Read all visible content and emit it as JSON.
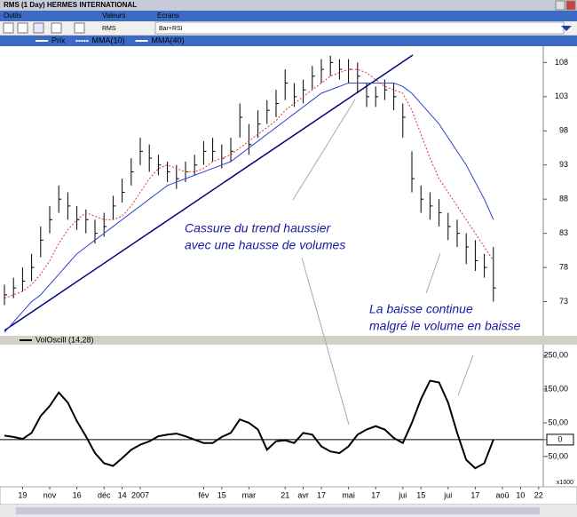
{
  "window": {
    "title": "RMS (1 Day) HERMES INTERNATIONAL"
  },
  "toolbar": {
    "sections": [
      "Outils",
      "Valeurs",
      "Ecrans"
    ],
    "symbol": "RMS",
    "screen": "Bar+RSI"
  },
  "categories": [
    null,
    null,
    "19",
    null,
    null,
    "nov",
    null,
    null,
    "16",
    null,
    null,
    "déc",
    null,
    "14",
    null,
    "2007",
    null,
    null,
    null,
    null,
    null,
    null,
    "fév",
    null,
    "15",
    null,
    null,
    "mar",
    null,
    null,
    null,
    "21",
    null,
    "avr",
    null,
    "17",
    null,
    null,
    "mai",
    null,
    null,
    "17",
    null,
    null,
    "jui",
    null,
    "15",
    null,
    null,
    "jui",
    null,
    null,
    "17",
    null,
    null,
    "aoû",
    null,
    "10",
    null,
    "22"
  ],
  "chart_data": [
    {
      "type": "ohlc",
      "ylim": [
        68,
        110
      ],
      "yticks": [
        73,
        78,
        83,
        88,
        93,
        98,
        103,
        108
      ],
      "annotations": [
        {
          "lines": [
            "Cassure du trend haussier",
            "avec une hausse de volumes"
          ]
        },
        {
          "lines": [
            "La baisse continue",
            "malgré le volume en baisse"
          ]
        }
      ],
      "series": [
        {
          "name": "Prix",
          "color": "#000000",
          "values": [
            74,
            75,
            76,
            78,
            82,
            85,
            88,
            87,
            85,
            85,
            83,
            84,
            87,
            89,
            92,
            95,
            94,
            93,
            92,
            91,
            92,
            93,
            95,
            95,
            94,
            95,
            100,
            96,
            99,
            101,
            102,
            105,
            103,
            104,
            106,
            107,
            108,
            107,
            107,
            106,
            103,
            103,
            104,
            103,
            100,
            91,
            88,
            87,
            86,
            84,
            83,
            81,
            79,
            78,
            75
          ],
          "high": [
            75.5,
            76.5,
            78,
            80,
            84,
            87,
            90,
            89,
            87,
            86.5,
            85,
            86,
            88.5,
            91,
            94,
            97,
            96,
            94.5,
            93.5,
            93,
            93.5,
            94.5,
            96.5,
            97,
            96,
            97,
            102,
            99,
            101,
            102.5,
            104,
            107,
            105,
            105.5,
            107.5,
            108.5,
            109,
            108.5,
            108.5,
            108,
            105,
            104.5,
            105.5,
            105,
            102,
            95,
            90,
            89,
            88,
            86,
            85,
            83,
            82,
            80,
            81
          ],
          "low": [
            72.5,
            73.5,
            74.5,
            76,
            79.5,
            83,
            86,
            85,
            83.5,
            83,
            81.5,
            82.5,
            85,
            87.5,
            90,
            93,
            92,
            91.5,
            90.5,
            89.5,
            90.5,
            91.5,
            93,
            93.5,
            92.5,
            93.5,
            97,
            94.5,
            97,
            99,
            100,
            102.5,
            101.5,
            102,
            104,
            105,
            106,
            105.5,
            105,
            103.5,
            101.5,
            101.5,
            102.5,
            101,
            97,
            89,
            86,
            85,
            84,
            82,
            81,
            78.5,
            77.5,
            76.5,
            73
          ]
        },
        {
          "name": "MMA(10)",
          "color": "#e03030",
          "values": [
            73.5,
            74,
            74.5,
            75.5,
            77,
            79,
            81.5,
            83.5,
            85,
            86,
            85.5,
            85,
            85,
            85.5,
            87,
            89,
            91,
            92.5,
            93,
            92.5,
            92,
            92,
            92.5,
            93.5,
            94,
            94.5,
            95.5,
            96.5,
            97.5,
            98.5,
            99.5,
            101,
            102,
            103,
            104,
            105,
            106,
            106.5,
            107,
            107,
            106.5,
            105.5,
            104.5,
            104,
            103.5,
            101,
            97.5,
            94,
            91,
            89,
            87,
            85,
            83,
            81,
            79
          ]
        },
        {
          "name": "MMA(40)",
          "color": "#3040d0",
          "values": [
            68.5,
            70,
            71.5,
            73,
            74,
            75.5,
            77,
            78.5,
            80,
            81,
            82,
            83,
            84,
            85,
            86,
            87,
            88,
            89,
            90,
            90.5,
            91,
            91.5,
            92,
            92.5,
            93,
            93.5,
            94.5,
            95.5,
            96.5,
            97.5,
            98.5,
            99.5,
            100.5,
            101.5,
            102.5,
            103.5,
            104,
            104.5,
            105,
            105,
            105,
            105,
            105,
            105,
            104.5,
            103.5,
            102,
            100.5,
            99,
            97,
            95,
            93,
            90.5,
            88,
            85
          ]
        }
      ]
    },
    {
      "type": "line",
      "ylim": [
        -140,
        282
      ],
      "yticks": [
        {
          "value": 250,
          "label": "250,00"
        },
        {
          "value": 150,
          "label": "150,00"
        },
        {
          "value": 50,
          "label": "50,00"
        },
        0,
        {
          "value": -50,
          "label": "-50,00"
        }
      ],
      "unit_label": "x1000",
      "series": [
        {
          "name": "VolOscill (14,28)",
          "color": "#000000",
          "values": [
            12,
            8,
            2,
            20,
            70,
            100,
            140,
            110,
            55,
            10,
            -40,
            -70,
            -78,
            -55,
            -30,
            -15,
            -5,
            10,
            15,
            18,
            10,
            0,
            -10,
            -10,
            8,
            20,
            60,
            50,
            30,
            -30,
            -5,
            -2,
            -10,
            20,
            15,
            -20,
            -35,
            -40,
            -20,
            15,
            30,
            40,
            30,
            5,
            -10,
            50,
            120,
            175,
            170,
            110,
            20,
            -60,
            -85,
            -70,
            0
          ]
        }
      ]
    }
  ]
}
